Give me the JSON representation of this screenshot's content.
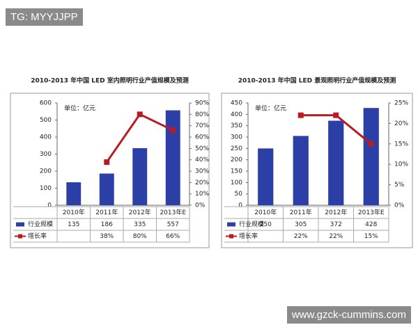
{
  "watermarks": {
    "top": "TG: MYYJJPP",
    "bottom": "www.gzck-cummins.com"
  },
  "chart_data": [
    {
      "type": "bar_line",
      "title": "2010-2013 年中国 LED 室内照明行业产值规模及预测",
      "unit_label": "单位：亿元",
      "categories": [
        "2010年",
        "2011年",
        "2012年",
        "2013年E"
      ],
      "series": [
        {
          "name": "行业规模",
          "type": "bar",
          "color": "#2b3fa6",
          "values": [
            135,
            186,
            335,
            557
          ]
        },
        {
          "name": "增长率",
          "type": "line",
          "axis": "y2",
          "color": "#b81c22",
          "values": [
            null,
            38,
            80,
            66
          ],
          "value_labels": [
            null,
            "38%",
            "80%",
            "66%"
          ]
        }
      ],
      "ylim": [
        0,
        600
      ],
      "yticks": [
        0,
        100,
        200,
        300,
        400,
        500,
        600
      ],
      "y2lim": [
        0,
        90
      ],
      "y2ticks": [
        {
          "value": 0,
          "label": "0%"
        },
        {
          "value": 10,
          "label": "10%"
        },
        {
          "value": 20,
          "label": "20%"
        },
        {
          "value": 30,
          "label": "30%"
        },
        {
          "value": 40,
          "label": "40%"
        },
        {
          "value": 50,
          "label": "50%"
        },
        {
          "value": 60,
          "label": "60%"
        },
        {
          "value": 70,
          "label": "70%"
        },
        {
          "value": 80,
          "label": "80%"
        },
        {
          "value": 90,
          "label": "90%"
        }
      ]
    },
    {
      "type": "bar_line",
      "title": "2010-2013 年中国 LED 景观照明行业产值规模及预测",
      "unit_label": "单位：亿元",
      "categories": [
        "2010年",
        "2011年",
        "2012年",
        "2013年E"
      ],
      "series": [
        {
          "name": "行业规模",
          "type": "bar",
          "color": "#2b3fa6",
          "values": [
            250,
            305,
            372,
            428
          ]
        },
        {
          "name": "增长率",
          "type": "line",
          "axis": "y2",
          "color": "#b81c22",
          "values": [
            null,
            22,
            22,
            15
          ],
          "value_labels": [
            null,
            "22%",
            "22%",
            "15%"
          ]
        }
      ],
      "ylim": [
        0,
        450
      ],
      "yticks": [
        0,
        50,
        100,
        150,
        200,
        250,
        300,
        350,
        400,
        450
      ],
      "y2lim": [
        0,
        25
      ],
      "y2ticks": [
        {
          "value": 0,
          "label": "0%"
        },
        {
          "value": 5,
          "label": "5%"
        },
        {
          "value": 10,
          "label": "10%"
        },
        {
          "value": 15,
          "label": "15%"
        },
        {
          "value": 20,
          "label": "20%"
        },
        {
          "value": 25,
          "label": "25%"
        }
      ]
    }
  ]
}
